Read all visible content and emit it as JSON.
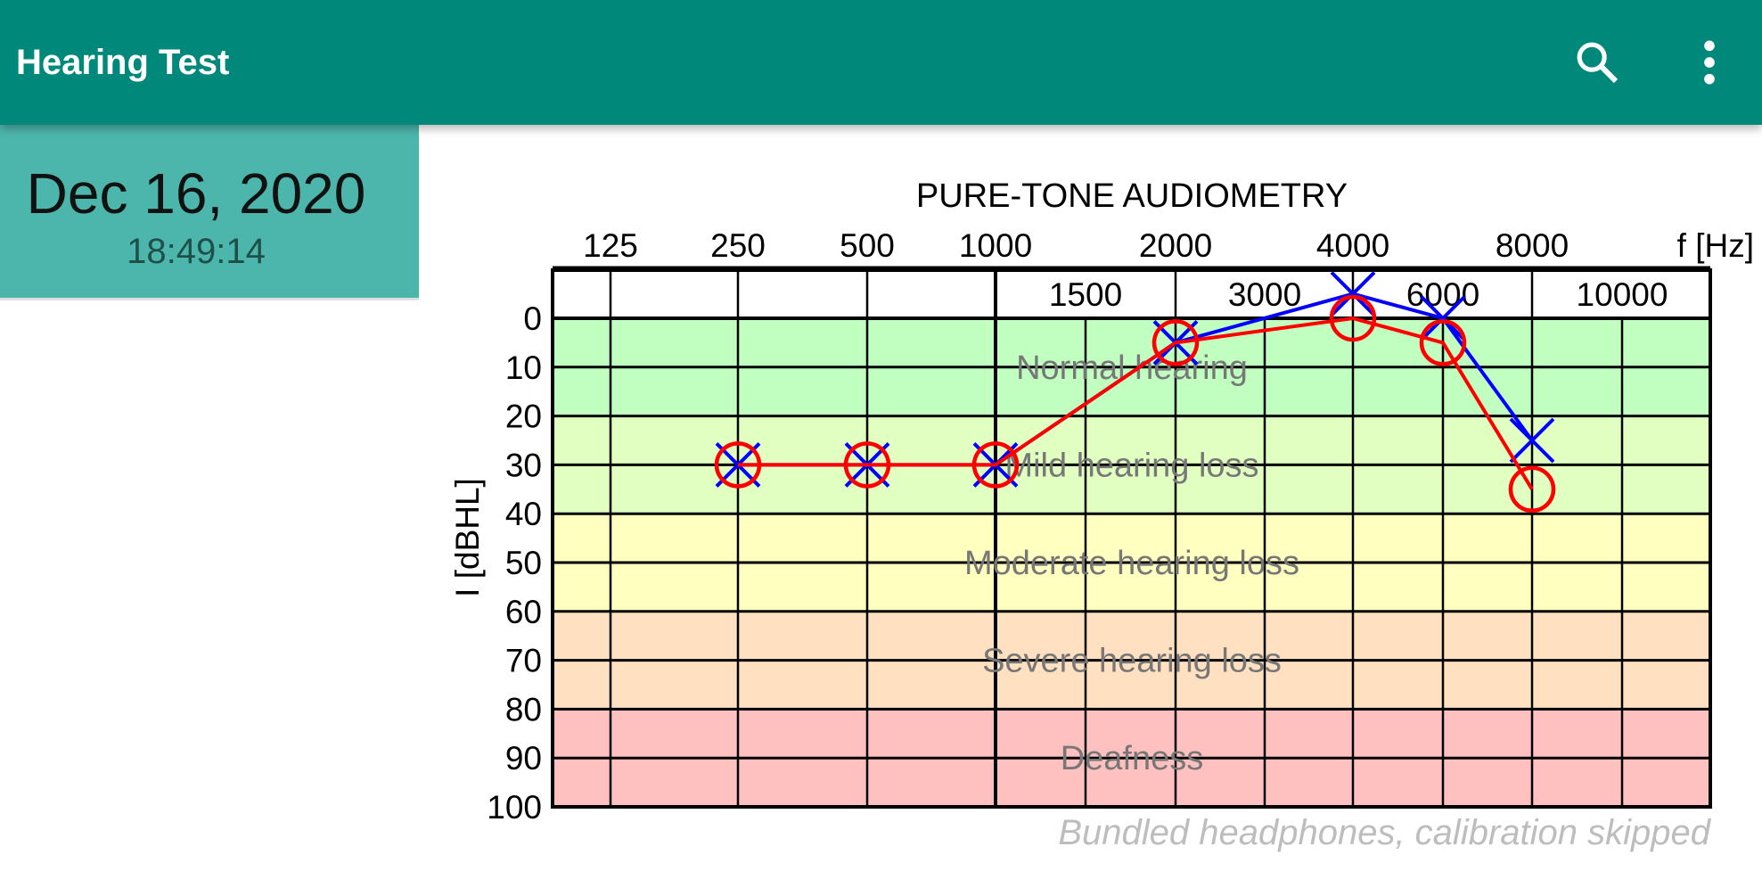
{
  "appbar": {
    "title": "Hearing Test",
    "search_icon": "search-icon",
    "menu_icon": "more-vert-icon",
    "color": "#00897b"
  },
  "sidebar": {
    "items": [
      {
        "date": "Dec 16, 2020",
        "time": "18:49:14",
        "selected": true,
        "color": "#4db6ac"
      }
    ]
  },
  "chart_data": {
    "type": "line",
    "title": "PURE-TONE AUDIOMETRY",
    "xlabel": "f [Hz]",
    "ylabel": "I [dBHL]",
    "x_scale": "log",
    "x_ticks_major": [
      "125",
      "250",
      "500",
      "1000",
      "2000",
      "4000",
      "8000"
    ],
    "x_ticks_minor": [
      "1500",
      "3000",
      "6000",
      "10000"
    ],
    "y_ticks": [
      "0",
      "10",
      "20",
      "30",
      "40",
      "50",
      "60",
      "70",
      "80",
      "90",
      "100"
    ],
    "ylim": [
      -10,
      100
    ],
    "y_inverted": true,
    "grid": true,
    "zones": [
      {
        "label": "Normal hearing",
        "from": 0,
        "to": 20,
        "color": "#c0ffc0"
      },
      {
        "label": "Mild hearing loss",
        "from": 20,
        "to": 40,
        "color": "#e0ffc0"
      },
      {
        "label": "Moderate hearing loss",
        "from": 40,
        "to": 60,
        "color": "#ffffc0"
      },
      {
        "label": "Severe hearing loss",
        "from": 60,
        "to": 80,
        "color": "#ffe0c0"
      },
      {
        "label": "Deafness",
        "from": 80,
        "to": 100,
        "color": "#ffc0c0"
      }
    ],
    "series": [
      {
        "marker": "cross",
        "color": "#0000ff",
        "x": [
          250,
          500,
          1000,
          2000,
          4000,
          6000,
          8000
        ],
        "y": [
          30,
          30,
          30,
          5,
          -5,
          0,
          25
        ]
      },
      {
        "marker": "circle",
        "color": "#ff0000",
        "x": [
          250,
          500,
          1000,
          2000,
          4000,
          6000,
          8000
        ],
        "y": [
          30,
          30,
          30,
          5,
          0,
          5,
          35
        ]
      }
    ]
  },
  "footer": {
    "note": "Bundled headphones, calibration skipped"
  }
}
